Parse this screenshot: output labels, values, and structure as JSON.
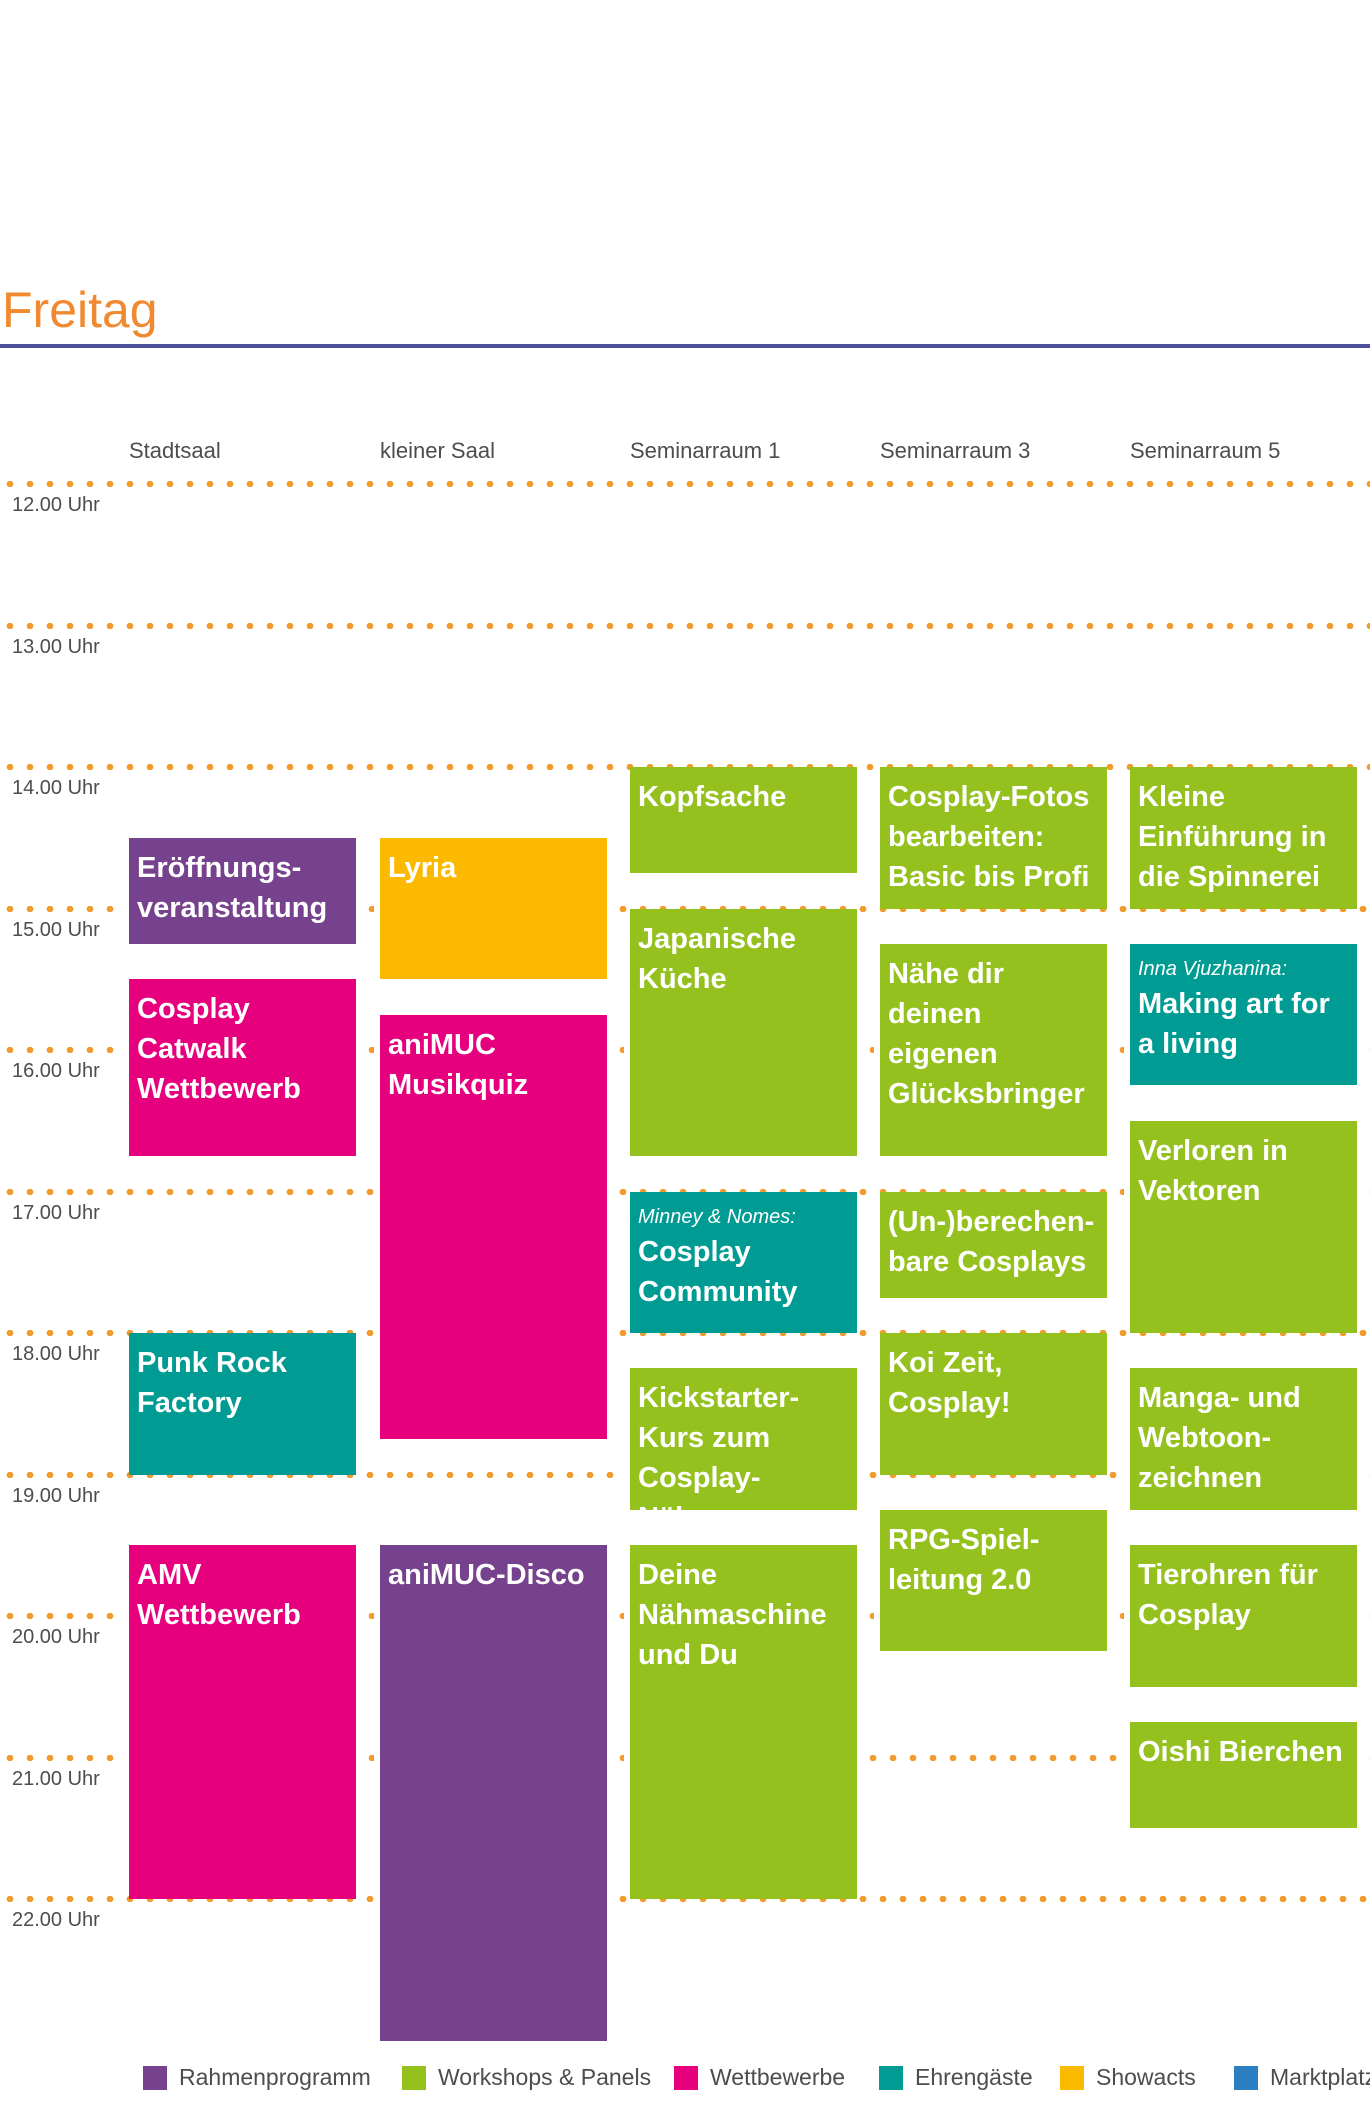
{
  "title": "Freitag",
  "colors": {
    "Rahmenprogramm": "#77428d",
    "Workshops & Panels": "#95c11f",
    "Wettbewerbe": "#e6007e",
    "Ehrengäste": "#009c93",
    "Showacts": "#fbba00",
    "Marktplatz": "#2b7fc1"
  },
  "rooms": [
    "Stadtsaal",
    "kleiner Saal",
    "Seminarraum 1",
    "Seminarraum 3",
    "Seminarraum 5"
  ],
  "times": [
    "12.00 Uhr",
    "13.00 Uhr",
    "14.00 Uhr",
    "15.00 Uhr",
    "16.00 Uhr",
    "17.00 Uhr",
    "18.00 Uhr",
    "19.00 Uhr",
    "20.00 Uhr",
    "21.00 Uhr",
    "22.00 Uhr"
  ],
  "events": [
    {
      "room": 0,
      "start": "14:30",
      "end": "15:15",
      "category": "Rahmenprogramm",
      "title": "Eröffnungs-\nveranstaltung"
    },
    {
      "room": 0,
      "start": "15:30",
      "end": "16:45",
      "category": "Wettbewerbe",
      "title": "Cosplay\nCatwalk\nWettbewerb"
    },
    {
      "room": 0,
      "start": "18:00",
      "end": "19:00",
      "category": "Ehrengäste",
      "title": "Punk Rock\nFactory"
    },
    {
      "room": 0,
      "start": "19:30",
      "end": "22:00",
      "category": "Wettbewerbe",
      "title": "AMV\nWettbewerb"
    },
    {
      "room": 1,
      "start": "14:30",
      "end": "15:30",
      "category": "Showacts",
      "title": "Lyria"
    },
    {
      "room": 1,
      "start": "15:45",
      "end": "18:45",
      "category": "Wettbewerbe",
      "title": "aniMUC\nMusikquiz"
    },
    {
      "room": 1,
      "start": "19:30",
      "end": "23:00",
      "category": "Rahmenprogramm",
      "title": "aniMUC-Disco"
    },
    {
      "room": 2,
      "start": "14:00",
      "end": "14:45",
      "category": "Workshops & Panels",
      "title": "Kopfsache"
    },
    {
      "room": 2,
      "start": "15:00",
      "end": "16:45",
      "category": "Workshops & Panels",
      "title": "Japanische\nKüche"
    },
    {
      "room": 2,
      "start": "17:00",
      "end": "18:00",
      "category": "Ehrengäste",
      "subtitle": "Minney & Nomes:",
      "title": "Cosplay\nCommunity"
    },
    {
      "room": 2,
      "start": "18:15",
      "end": "19:15",
      "category": "Workshops & Panels",
      "title": "Kickstarter-\nKurs zum\nCosplay-Nähen"
    },
    {
      "room": 2,
      "start": "19:30",
      "end": "22:00",
      "category": "Workshops & Panels",
      "title": "Deine\nNähmaschine\nund Du"
    },
    {
      "room": 3,
      "start": "14:00",
      "end": "15:00",
      "category": "Workshops & Panels",
      "title": "Cosplay-Fotos\nbearbeiten:\nBasic bis Profi"
    },
    {
      "room": 3,
      "start": "15:15",
      "end": "16:45",
      "category": "Workshops & Panels",
      "title": "Nähe dir\ndeinen eigenen\nGlücksbringer"
    },
    {
      "room": 3,
      "start": "17:00",
      "end": "17:45",
      "category": "Workshops & Panels",
      "title": "(Un-)berechen-\nbare Cosplays"
    },
    {
      "room": 3,
      "start": "18:00",
      "end": "19:00",
      "category": "Workshops & Panels",
      "title": "Koi Zeit,\nCosplay!"
    },
    {
      "room": 3,
      "start": "19:15",
      "end": "20:15",
      "category": "Workshops & Panels",
      "title": "RPG-Spiel-\nleitung 2.0"
    },
    {
      "room": 4,
      "start": "14:00",
      "end": "15:00",
      "category": "Workshops & Panels",
      "title": "Kleine\nEinführung in\ndie Spinnerei"
    },
    {
      "room": 4,
      "start": "15:15",
      "end": "16:15",
      "category": "Ehrengäste",
      "subtitle": "Inna Vjuzhanina:",
      "title": "Making art for\na living"
    },
    {
      "room": 4,
      "start": "16:30",
      "end": "18:00",
      "category": "Workshops & Panels",
      "title": "Verloren in\nVektoren"
    },
    {
      "room": 4,
      "start": "18:15",
      "end": "19:15",
      "category": "Workshops & Panels",
      "title": "Manga- und\nWebtoon-\nzeichnen"
    },
    {
      "room": 4,
      "start": "19:30",
      "end": "20:30",
      "category": "Workshops & Panels",
      "title": "Tierohren für\nCosplay"
    },
    {
      "room": 4,
      "start": "20:45",
      "end": "21:30",
      "category": "Workshops & Panels",
      "title": "Oishi Bierchen"
    }
  ],
  "legend": [
    {
      "label": "Rahmenprogramm",
      "color": "#77428d"
    },
    {
      "label": "Workshops & Panels",
      "color": "#95c11f"
    },
    {
      "label": "Wettbewerbe",
      "color": "#e6007e"
    },
    {
      "label": "Ehrengäste",
      "color": "#009c93"
    },
    {
      "label": "Showacts",
      "color": "#fbba00"
    },
    {
      "label": "Marktplatz",
      "color": "#2b7fc1"
    }
  ]
}
